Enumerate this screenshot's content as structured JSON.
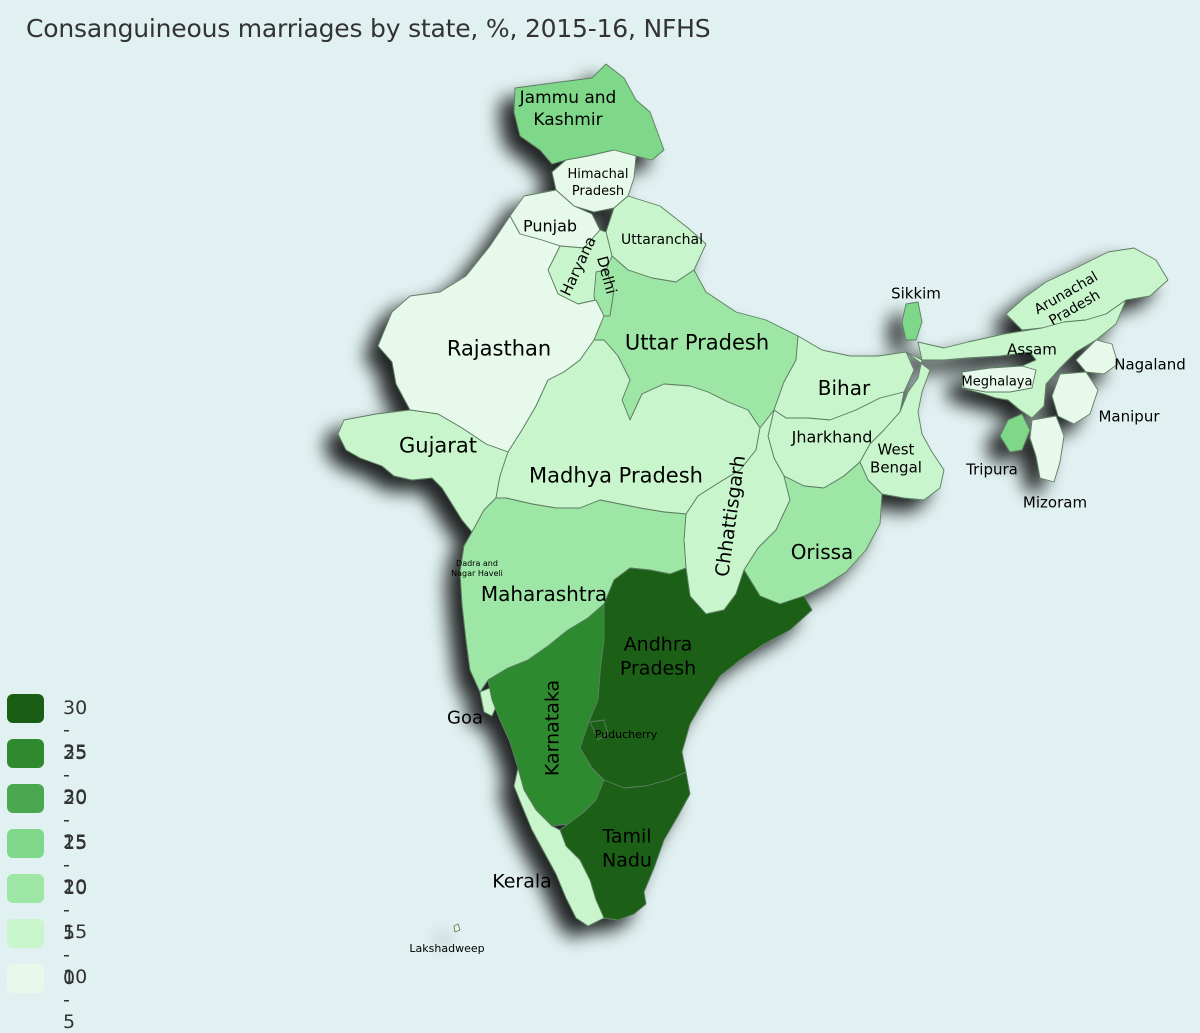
{
  "title": "Consanguineous marriages by state, %, 2015-16, NFHS",
  "legend": [
    {
      "label": "30 - 35",
      "color": "#1a5e16"
    },
    {
      "label": "25 - 30",
      "color": "#2f8a2f"
    },
    {
      "label": "20 - 25",
      "color": "#4ca84f"
    },
    {
      "label": "15 - 20",
      "color": "#7fd88a"
    },
    {
      "label": "10 - 15",
      "color": "#9de6a6"
    },
    {
      "label": "5 - 10",
      "color": "#c8f5cc"
    },
    {
      "label": "0 - 5",
      "color": "#e7f9ea"
    }
  ],
  "regions": [
    {
      "id": "jammu-kashmir",
      "label_lines": [
        "Jammu and",
        "Kashmir"
      ],
      "class": "15 - 20",
      "color": "#7fd88a"
    },
    {
      "id": "himachal",
      "label_lines": [
        "Himachal",
        "Pradesh"
      ],
      "class": "0 - 5",
      "color": "#e7f9ea"
    },
    {
      "id": "punjab",
      "label_lines": [
        "Punjab"
      ],
      "class": "0 - 5",
      "color": "#e7f9ea"
    },
    {
      "id": "uttaranchal",
      "label_lines": [
        "Uttaranchal"
      ],
      "class": "5 - 10",
      "color": "#c8f5cc"
    },
    {
      "id": "haryana",
      "label_lines": [
        "Haryana"
      ],
      "class": "5 - 10",
      "color": "#c8f5cc"
    },
    {
      "id": "delhi",
      "label_lines": [
        "Delhi"
      ],
      "class": "10 - 15",
      "color": "#9de6a6"
    },
    {
      "id": "rajasthan",
      "label_lines": [
        "Rajasthan"
      ],
      "class": "0 - 5",
      "color": "#e7f9ea"
    },
    {
      "id": "uttar-pradesh",
      "label_lines": [
        "Uttar Pradesh"
      ],
      "class": "10 - 15",
      "color": "#9de6a6"
    },
    {
      "id": "bihar",
      "label_lines": [
        "Bihar"
      ],
      "class": "5 - 10",
      "color": "#c8f5cc"
    },
    {
      "id": "sikkim",
      "label_lines": [
        "Sikkim"
      ],
      "class": "15 - 20",
      "color": "#7fd88a"
    },
    {
      "id": "arunachal",
      "label_lines": [
        "Arunachal",
        "Pradesh"
      ],
      "class": "5 - 10",
      "color": "#c8f5cc"
    },
    {
      "id": "assam",
      "label_lines": [
        "Assam"
      ],
      "class": "5 - 10",
      "color": "#c8f5cc"
    },
    {
      "id": "nagaland",
      "label_lines": [
        "Nagaland"
      ],
      "class": "0 - 5",
      "color": "#e7f9ea"
    },
    {
      "id": "meghalaya",
      "label_lines": [
        "Meghalaya"
      ],
      "class": "0 - 5",
      "color": "#e7f9ea"
    },
    {
      "id": "manipur",
      "label_lines": [
        "Manipur"
      ],
      "class": "0 - 5",
      "color": "#e7f9ea"
    },
    {
      "id": "tripura",
      "label_lines": [
        "Tripura"
      ],
      "class": "15 - 20",
      "color": "#7fd88a"
    },
    {
      "id": "mizoram",
      "label_lines": [
        "Mizoram"
      ],
      "class": "0 - 5",
      "color": "#e7f9ea"
    },
    {
      "id": "gujarat",
      "label_lines": [
        "Gujarat"
      ],
      "class": "5 - 10",
      "color": "#c8f5cc"
    },
    {
      "id": "madhya-pradesh",
      "label_lines": [
        "Madhya Pradesh"
      ],
      "class": "5 - 10",
      "color": "#c8f5cc"
    },
    {
      "id": "jharkhand",
      "label_lines": [
        "Jharkhand"
      ],
      "class": "5 - 10",
      "color": "#c8f5cc"
    },
    {
      "id": "west-bengal",
      "label_lines": [
        "West",
        "Bengal"
      ],
      "class": "5 - 10",
      "color": "#c8f5cc"
    },
    {
      "id": "chhattisgarh",
      "label_lines": [
        "Chhattisgarh"
      ],
      "class": "5 - 10",
      "color": "#c8f5cc"
    },
    {
      "id": "orissa",
      "label_lines": [
        "Orissa"
      ],
      "class": "10 - 15",
      "color": "#9de6a6"
    },
    {
      "id": "dadra-nagar-haveli",
      "label_lines": [
        "Dadra and",
        "Nagar Haveli"
      ],
      "class": "5 - 10",
      "color": "#c8f5cc"
    },
    {
      "id": "maharashtra",
      "label_lines": [
        "Maharashtra"
      ],
      "class": "10 - 15",
      "color": "#9de6a6"
    },
    {
      "id": "andhra-pradesh",
      "label_lines": [
        "Andhra",
        "Pradesh"
      ],
      "class": "30 - 35",
      "color": "#1a5e16"
    },
    {
      "id": "goa",
      "label_lines": [
        "Goa"
      ],
      "class": "5 - 10",
      "color": "#c8f5cc"
    },
    {
      "id": "karnataka",
      "label_lines": [
        "Karnataka"
      ],
      "class": "25 - 30",
      "color": "#2f8a2f"
    },
    {
      "id": "puducherry",
      "label_lines": [
        "Puducherry"
      ],
      "class": "30 - 35",
      "color": "#1a5e16"
    },
    {
      "id": "tamil-nadu",
      "label_lines": [
        "Tamil",
        "Nadu"
      ],
      "class": "30 - 35",
      "color": "#1a5e16"
    },
    {
      "id": "kerala",
      "label_lines": [
        "Kerala"
      ],
      "class": "5 - 10",
      "color": "#c8f5cc"
    },
    {
      "id": "lakshadweep",
      "label_lines": [
        "Lakshadweep"
      ],
      "class": "",
      "color": "#e7f9ea"
    }
  ]
}
